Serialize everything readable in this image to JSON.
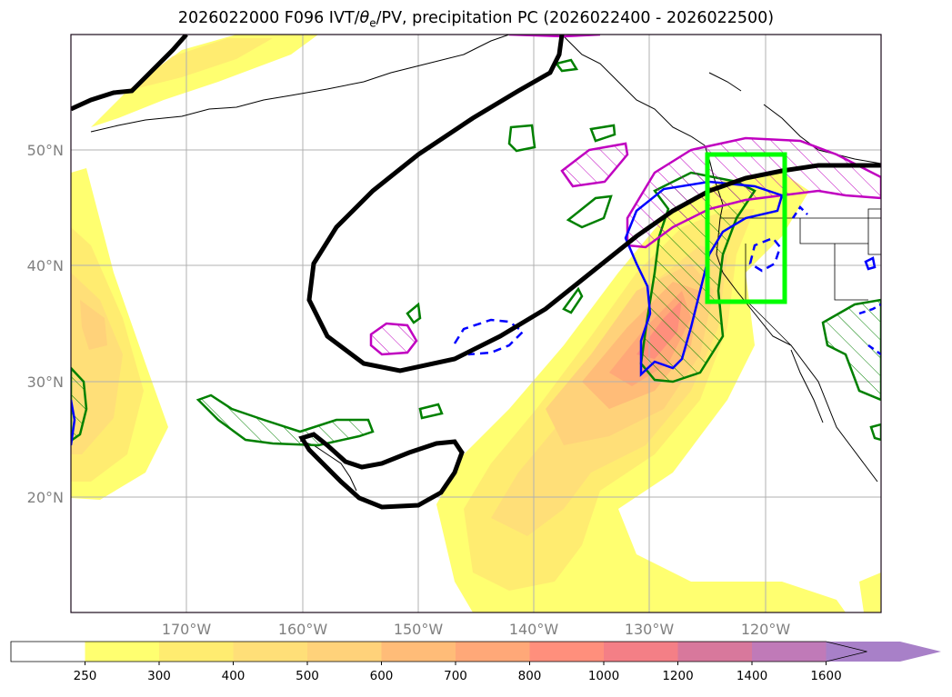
{
  "title": {
    "prefix": "2026022000 F096 IVT/",
    "theta": "θ",
    "theta_sub": "e",
    "suffix": "/PV, precipitation PC (2026022400 - 2026022500)"
  },
  "map": {
    "projection": "PlateCarree",
    "lon_range": [
      -180,
      -110
    ],
    "lat_range": [
      10,
      60
    ],
    "gridlines": true,
    "lat_labels": [
      "20°N",
      "30°N",
      "40°N",
      "50°N"
    ],
    "lon_labels": [
      "170°W",
      "160°W",
      "150°W",
      "140°W",
      "130°W",
      "120°W"
    ],
    "highlight_box": {
      "lon": [
        -125,
        -118
      ],
      "lat": [
        37,
        49.5
      ],
      "color": "#00ff00"
    }
  },
  "colorbar": {
    "levels": [
      "250",
      "300",
      "400",
      "500",
      "600",
      "700",
      "800",
      "1000",
      "1200",
      "1400",
      "1600"
    ],
    "colors": [
      "#ffff70",
      "#ffec70",
      "#ffdf78",
      "#ffd27a",
      "#ffbc78",
      "#ffa878",
      "#ff8f7c",
      "#f47f86",
      "#d8789c",
      "#c07ab8",
      "#a880c8"
    ],
    "extend": "max"
  },
  "colors": {
    "pv_contour": "#000000",
    "theta_e_green": "#008000",
    "theta_e_magenta": "#c000c0",
    "precip_blue": "#0000ff",
    "box_green": "#00ff00"
  }
}
